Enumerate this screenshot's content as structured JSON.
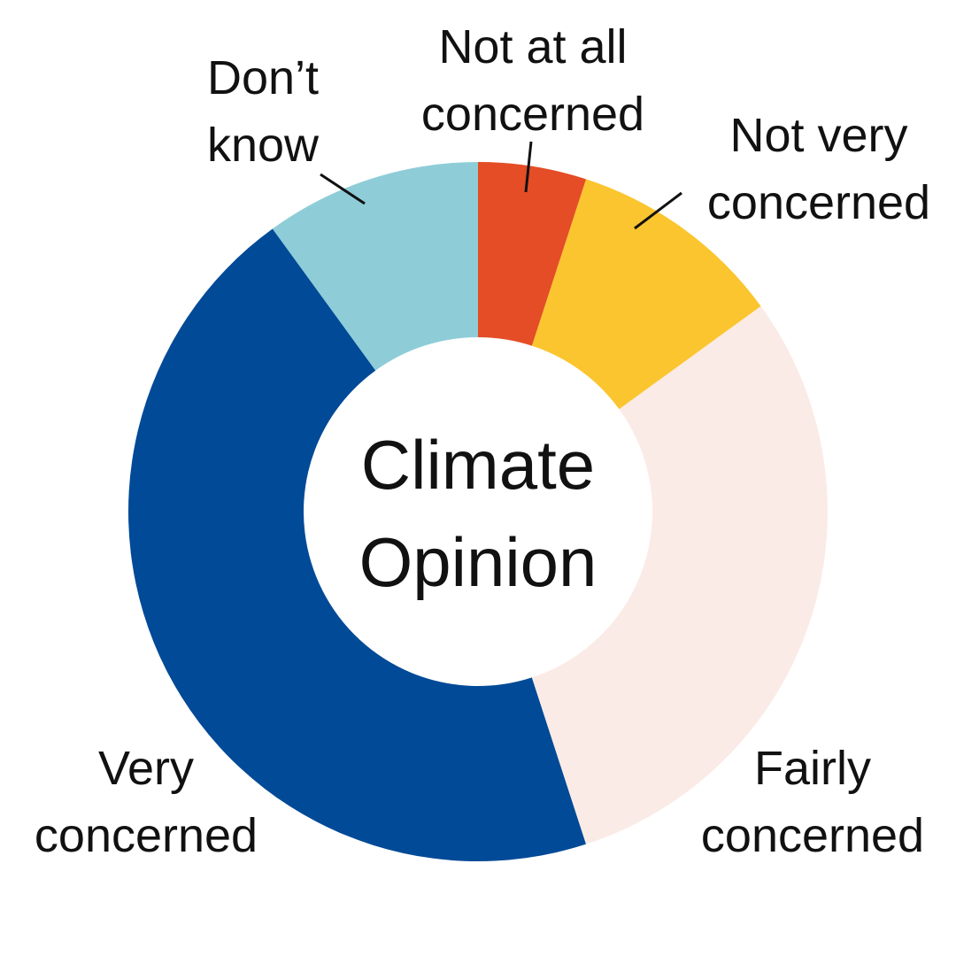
{
  "chart_data": {
    "type": "donut",
    "title": "Climate Opinion",
    "categories": [
      "Not at all concerned",
      "Not very concerned",
      "Fairly concerned",
      "Very concerned",
      "Don’t know"
    ],
    "values": [
      5,
      10,
      30,
      45,
      10
    ],
    "colors": [
      "#e44d26",
      "#fbc52f",
      "#fbebe6",
      "#004a97",
      "#8ecdd8"
    ]
  }
}
